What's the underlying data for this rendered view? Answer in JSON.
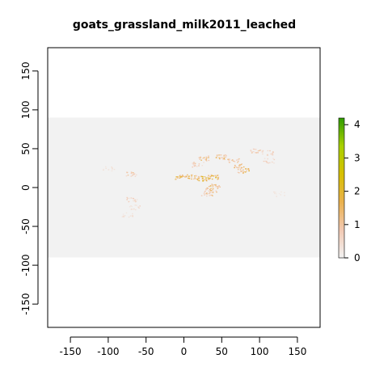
{
  "title": "goats_grassland_milk2011_leached",
  "chart_data": {
    "type": "heatmap",
    "title": "goats_grassland_milk2011_leached",
    "xlabel": "",
    "ylabel": "",
    "xlim": [
      -180,
      180
    ],
    "ylim": [
      -180,
      180
    ],
    "xticks": [
      -150,
      -100,
      -50,
      0,
      50,
      100,
      150
    ],
    "yticks": [
      -150,
      -100,
      -50,
      0,
      50,
      100,
      150
    ],
    "raster_extent": {
      "lon": [
        -180,
        180
      ],
      "lat": [
        -90,
        90
      ]
    },
    "background_value_color": "#f2f2f2",
    "legend": {
      "ticks": [
        0,
        1,
        2,
        3,
        4
      ],
      "range": [
        0,
        4.2
      ],
      "colors": [
        "#f2f2f2",
        "#f2c9b3",
        "#eab14d",
        "#d7c000",
        "#a8d000",
        "#2f9b00"
      ]
    },
    "hotspots": [
      {
        "lon": -5,
        "lat": 14,
        "value": 2.0
      },
      {
        "lon": 10,
        "lat": 14,
        "value": 1.8
      },
      {
        "lon": 25,
        "lat": 12,
        "value": 2.1
      },
      {
        "lon": 38,
        "lat": 14,
        "value": 2.2
      },
      {
        "lon": 40,
        "lat": 2,
        "value": 1.6
      },
      {
        "lon": 35,
        "lat": -3,
        "value": 1.4
      },
      {
        "lon": 30,
        "lat": -8,
        "value": 1.2
      },
      {
        "lon": 18,
        "lat": 30,
        "value": 1.0
      },
      {
        "lon": 25,
        "lat": 38,
        "value": 1.5
      },
      {
        "lon": 48,
        "lat": 40,
        "value": 1.6
      },
      {
        "lon": 65,
        "lat": 35,
        "value": 1.2
      },
      {
        "lon": 72,
        "lat": 28,
        "value": 1.4
      },
      {
        "lon": 78,
        "lat": 22,
        "value": 1.8
      },
      {
        "lon": 95,
        "lat": 48,
        "value": 1.0
      },
      {
        "lon": 110,
        "lat": 45,
        "value": 0.8
      },
      {
        "lon": 112,
        "lat": 35,
        "value": 0.7
      },
      {
        "lon": -70,
        "lat": -15,
        "value": 0.8
      },
      {
        "lon": -65,
        "lat": -25,
        "value": 0.6
      },
      {
        "lon": -70,
        "lat": 18,
        "value": 1.0
      },
      {
        "lon": -100,
        "lat": 25,
        "value": 0.4
      },
      {
        "lon": -75,
        "lat": -35,
        "value": 0.5
      },
      {
        "lon": 125,
        "lat": -8,
        "value": 0.3
      }
    ]
  }
}
